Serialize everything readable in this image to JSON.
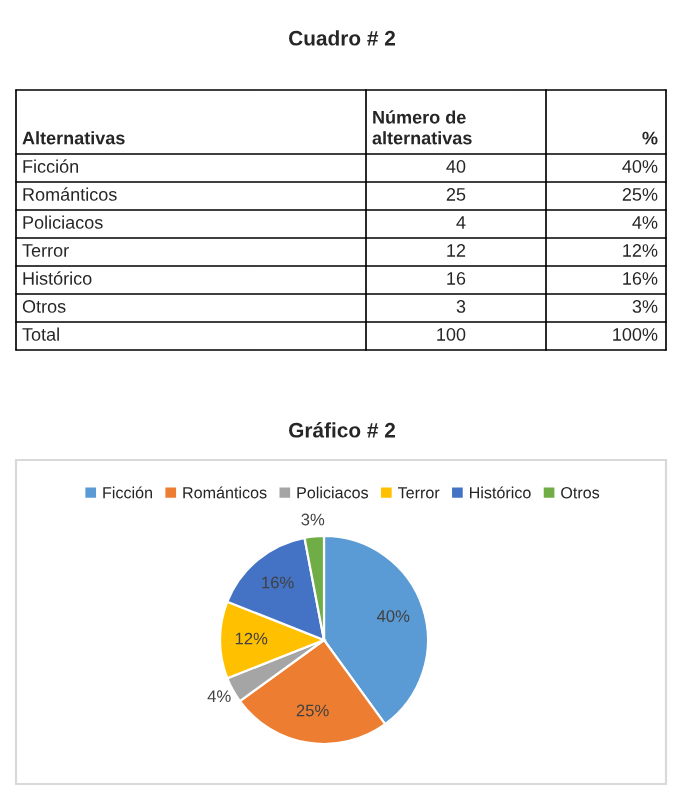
{
  "chart_data": [
    {
      "type": "other",
      "title": "Cuadro # 2",
      "annotations": [
        "Alternativas",
        "Número de\nalternativas",
        "%",
        "Ficción",
        "40",
        "40%",
        "Románticos",
        "25",
        "25%",
        "Policiacos",
        "4",
        "4%",
        "Terror",
        "12",
        "12%",
        "Histórico",
        "16",
        "16%",
        "Otros",
        "3",
        "3%",
        "Total",
        "100",
        "100%"
      ]
    },
    {
      "type": "pie",
      "title": "Gráfico # 2",
      "categories": [
        "Ficción",
        "Románticos",
        "Policiacos",
        "Terror",
        "Histórico",
        "Otros"
      ],
      "values": [
        40,
        25,
        4,
        12,
        16,
        3
      ],
      "value_labels": [
        "40%",
        "25%",
        "4%",
        "12%",
        "16%",
        "3%"
      ],
      "colors": [
        "#5b9bd5",
        "#ed7d31",
        "#a5a5a5",
        "#ffc000",
        "#4472c4",
        "#70ad47"
      ],
      "legend": "top"
    }
  ]
}
